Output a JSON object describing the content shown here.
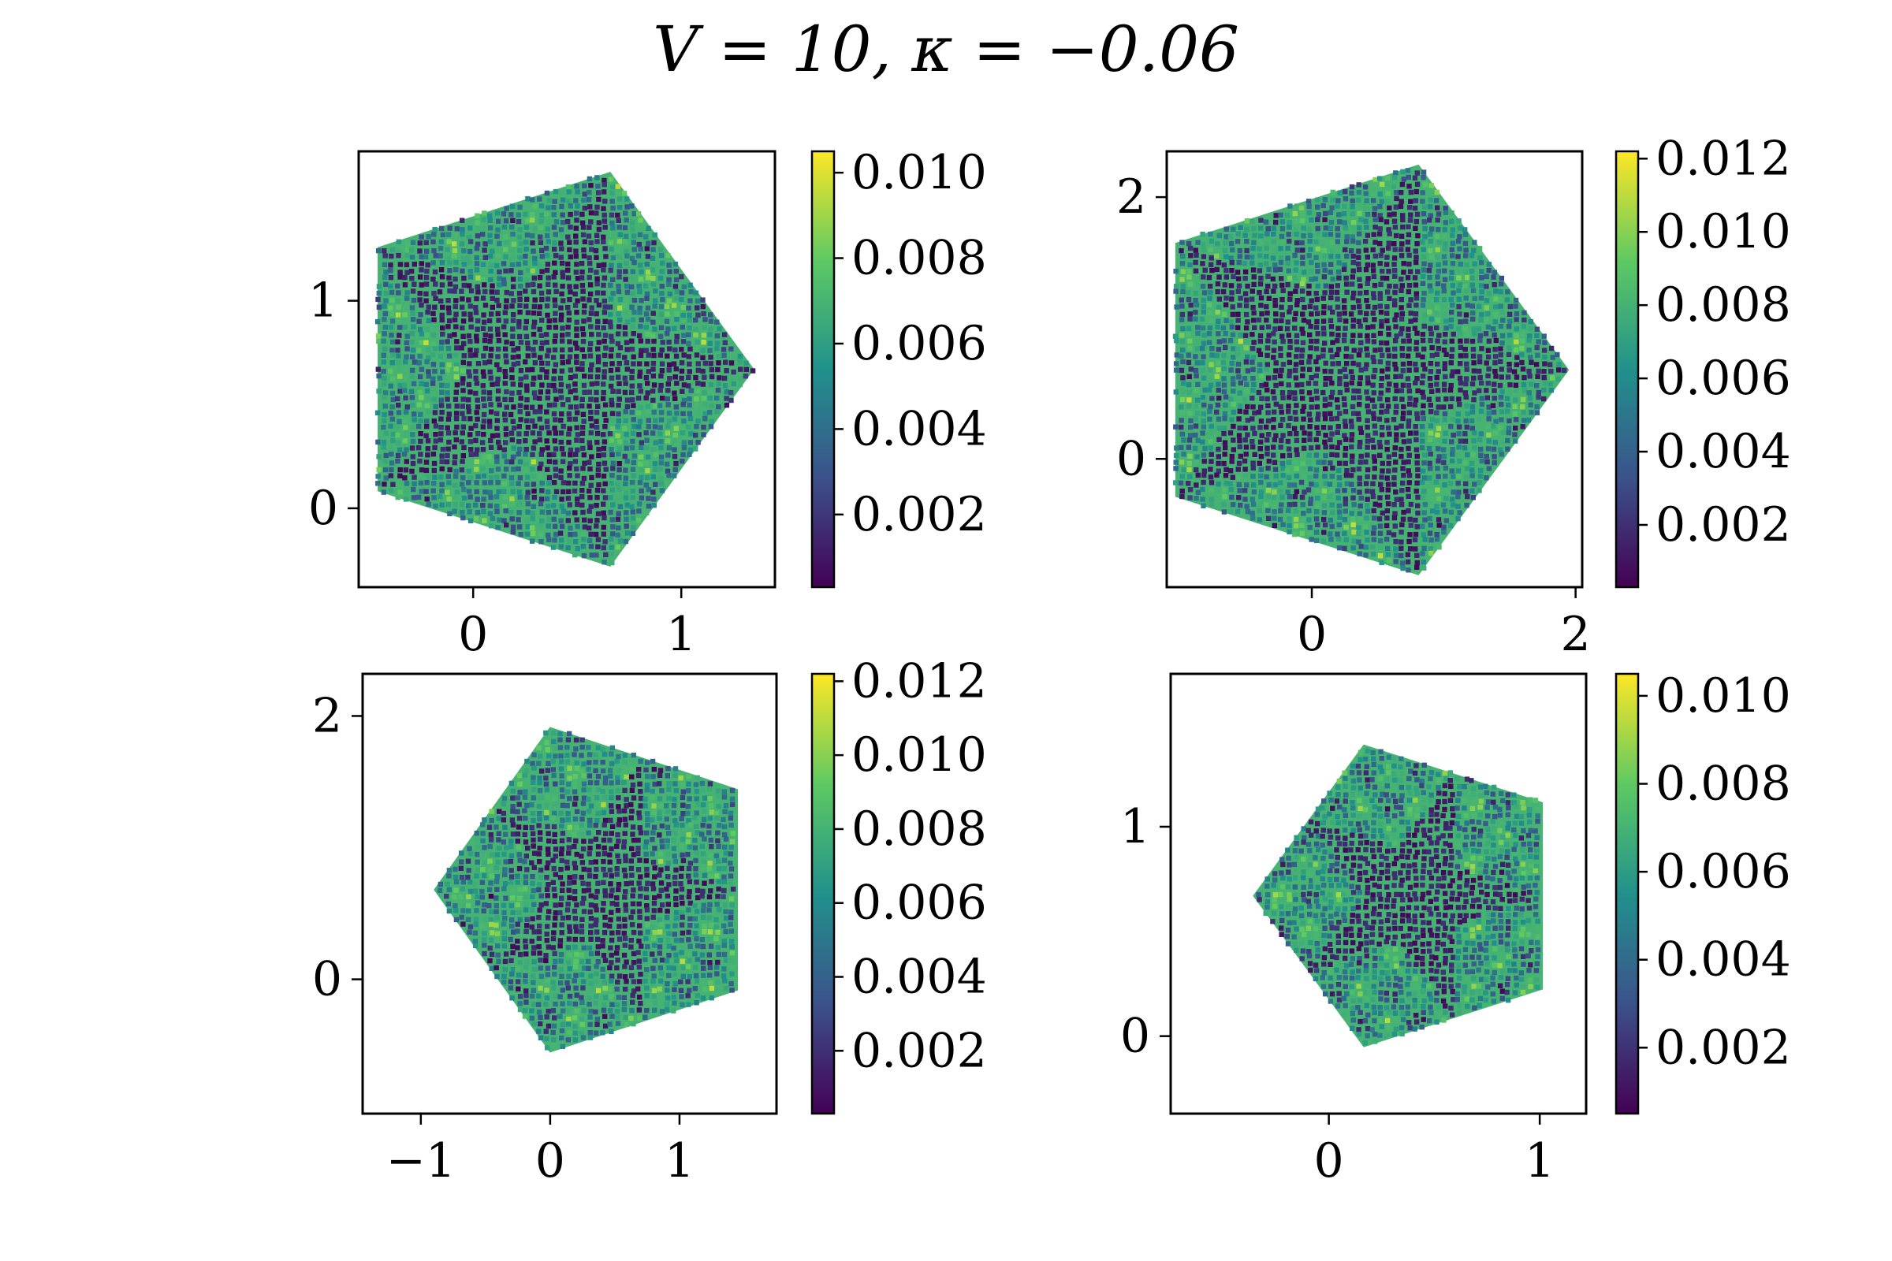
{
  "title": "V = 10, κ = −0.06",
  "palette": {
    "colormap": "viridis",
    "colors": [
      "#440154",
      "#3b528b",
      "#21918c",
      "#5ec962",
      "#fde725"
    ],
    "background": "#ffffff",
    "axes": "#000000"
  },
  "chart_data": [
    {
      "type": "heatmap",
      "shape": "pentagon",
      "inner_shape": "five-pointed star",
      "star_rotation_deg": 0,
      "rotation_deg": 0,
      "center": [
        0.35,
        0.67
      ],
      "circumradius": 1.0,
      "xlim": [
        -0.55,
        1.45
      ],
      "ylim": [
        -0.38,
        1.72
      ],
      "xticks": [
        0,
        1
      ],
      "xtick_labels": [
        "0",
        "1"
      ],
      "yticks": [
        0,
        1
      ],
      "ytick_labels": [
        "0",
        "1"
      ],
      "colorbar": {
        "min": 0.0003,
        "max": 0.0105,
        "ticks": [
          0.002,
          0.004,
          0.006,
          0.008,
          0.01
        ],
        "tick_labels": [
          "0.002",
          "0.004",
          "0.006",
          "0.008",
          "0.010"
        ]
      }
    },
    {
      "type": "heatmap",
      "shape": "pentagon",
      "inner_shape": "five-pointed star",
      "star_rotation_deg": 0,
      "rotation_deg": 0,
      "center": [
        0.3,
        0.68
      ],
      "circumradius": 1.65,
      "xlim": [
        -1.1,
        2.05
      ],
      "ylim": [
        -0.98,
        2.35
      ],
      "xticks": [
        0,
        2
      ],
      "xtick_labels": [
        "0",
        "2"
      ],
      "yticks": [
        0,
        2
      ],
      "ytick_labels": [
        "0",
        "2"
      ],
      "colorbar": {
        "min": 0.0003,
        "max": 0.0122,
        "ticks": [
          0.002,
          0.004,
          0.006,
          0.008,
          0.01,
          0.012
        ],
        "tick_labels": [
          "0.002",
          "0.004",
          "0.006",
          "0.008",
          "0.010",
          "0.012"
        ]
      }
    },
    {
      "type": "heatmap",
      "shape": "pentagon",
      "inner_shape": "five-pointed star",
      "star_rotation_deg": 36,
      "rotation_deg": 180,
      "center": [
        0.4,
        0.68
      ],
      "circumradius": 1.3,
      "xlim": [
        -1.45,
        1.75
      ],
      "ylim": [
        -1.02,
        2.32
      ],
      "xticks": [
        -1,
        0,
        1
      ],
      "xtick_labels": [
        "−1",
        "0",
        "1"
      ],
      "yticks": [
        0,
        2
      ],
      "ytick_labels": [
        "0",
        "2"
      ],
      "colorbar": {
        "min": 0.0003,
        "max": 0.0122,
        "ticks": [
          0.002,
          0.004,
          0.006,
          0.008,
          0.01,
          0.012
        ],
        "tick_labels": [
          "0.002",
          "0.004",
          "0.006",
          "0.008",
          "0.010",
          "0.012"
        ]
      }
    },
    {
      "type": "heatmap",
      "shape": "pentagon",
      "inner_shape": "five-pointed star",
      "star_rotation_deg": 36,
      "rotation_deg": 180,
      "center": [
        0.4,
        0.67
      ],
      "circumradius": 0.76,
      "xlim": [
        -0.75,
        1.22
      ],
      "ylim": [
        -0.37,
        1.73
      ],
      "xticks": [
        0,
        1
      ],
      "xtick_labels": [
        "0",
        "1"
      ],
      "yticks": [
        0,
        1
      ],
      "ytick_labels": [
        "0",
        "1"
      ],
      "colorbar": {
        "min": 0.0005,
        "max": 0.0105,
        "ticks": [
          0.002,
          0.004,
          0.006,
          0.008,
          0.01
        ],
        "tick_labels": [
          "0.002",
          "0.004",
          "0.006",
          "0.008",
          "0.010"
        ]
      }
    }
  ]
}
